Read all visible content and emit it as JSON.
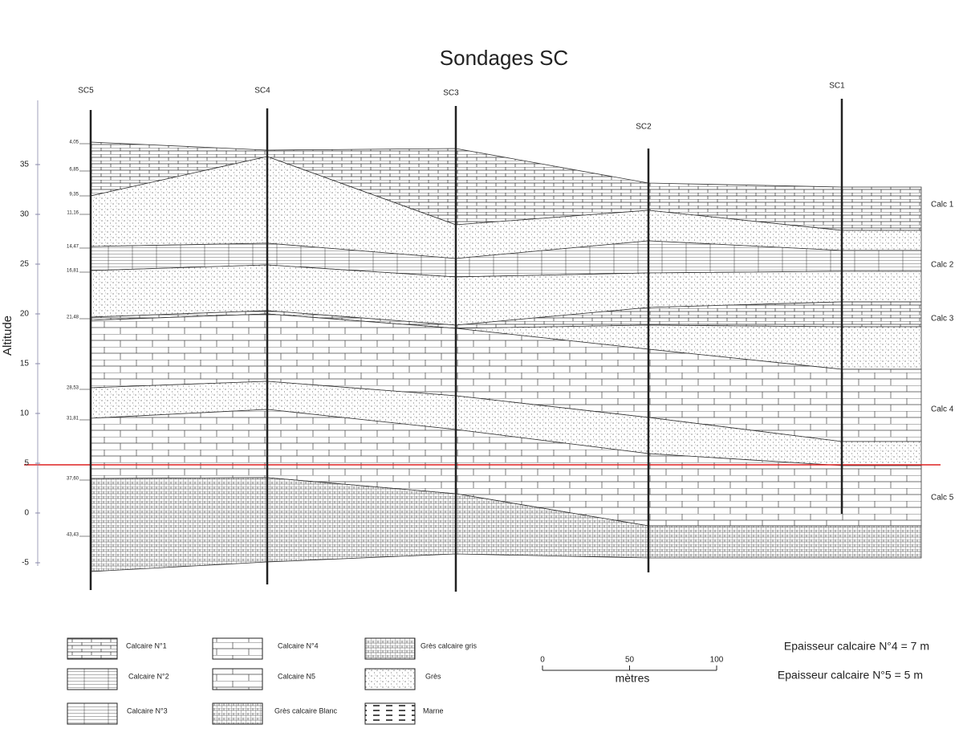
{
  "title": "Sondages SC",
  "boreholes": [
    {
      "label": "SC5"
    },
    {
      "label": "SC4"
    },
    {
      "label": "SC3"
    },
    {
      "label": "SC2"
    },
    {
      "label": "SC1"
    }
  ],
  "axis": {
    "label": "Altitude",
    "ticks": [
      35,
      30,
      25,
      20,
      15,
      10,
      5,
      0,
      -5
    ]
  },
  "depth_labels": [
    "4,05",
    "6,85",
    "9,35",
    "11,16",
    "14,47",
    "16,81",
    "21,48",
    "28,53",
    "31,81",
    "37,60",
    "43,43"
  ],
  "units": [
    "Calc 1",
    "Calc 2",
    "Calc 3",
    "Calc 4",
    "Calc 5"
  ],
  "legend": [
    {
      "label": "Calcaire N°1"
    },
    {
      "label": "Calcaire N°2"
    },
    {
      "label": "Calcaire N°3"
    },
    {
      "label": "Calcaire N°4"
    },
    {
      "label": "Calcaire N5"
    },
    {
      "label": "Grès calcaire Blanc"
    },
    {
      "label": "Grès calcaire gris"
    },
    {
      "label": "Grès"
    },
    {
      "label": "Marne"
    }
  ],
  "scale": {
    "ticks": [
      0,
      50,
      100
    ],
    "unit": "mètres"
  },
  "notes": [
    "Epaisseur calcaire N°4 = 7 m",
    "Epaisseur calcaire N°5 = 5 m"
  ]
}
